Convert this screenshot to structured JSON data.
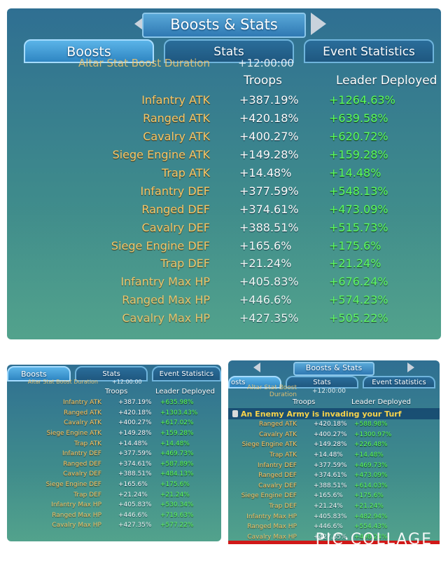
{
  "main": {
    "title": "Boosts & Stats",
    "tabs": [
      "Boosts",
      "Stats",
      "Event Statistics"
    ],
    "partial_row": {
      "label": "Altar Stat Boost Duration",
      "value": "+12:00:00"
    },
    "headers": {
      "troops": "Troops",
      "leader": "Leader Deployed"
    },
    "rows": [
      {
        "name": "Infantry ATK",
        "troops": "+387.19%",
        "leader": "+1264.63%"
      },
      {
        "name": "Ranged ATK",
        "troops": "+420.18%",
        "leader": "+639.58%"
      },
      {
        "name": "Cavalry ATK",
        "troops": "+400.27%",
        "leader": "+620.72%"
      },
      {
        "name": "Siege Engine ATK",
        "troops": "+149.28%",
        "leader": "+159.28%"
      },
      {
        "name": "Trap ATK",
        "troops": "+14.48%",
        "leader": "+14.48%"
      },
      {
        "name": "Infantry DEF",
        "troops": "+377.59%",
        "leader": "+548.13%"
      },
      {
        "name": "Ranged DEF",
        "troops": "+374.61%",
        "leader": "+473.09%"
      },
      {
        "name": "Cavalry DEF",
        "troops": "+388.51%",
        "leader": "+515.73%"
      },
      {
        "name": "Siege Engine DEF",
        "troops": "+165.6%",
        "leader": "+175.6%"
      },
      {
        "name": "Trap DEF",
        "troops": "+21.24%",
        "leader": "+21.24%"
      },
      {
        "name": "Infantry Max HP",
        "troops": "+405.83%",
        "leader": "+676.24%"
      },
      {
        "name": "Ranged Max HP",
        "troops": "+446.6%",
        "leader": "+574.23%"
      },
      {
        "name": "Cavalry Max HP",
        "troops": "+427.35%",
        "leader": "+505.22%"
      }
    ]
  },
  "bottom_left": {
    "tabs": [
      "Boosts",
      "Stats",
      "Event Statistics"
    ],
    "partial_row": {
      "label": "Altar Stat Boost Duration",
      "value": "+12:00:00"
    },
    "headers": {
      "troops": "Troops",
      "leader": "Leader Deployed"
    },
    "rows": [
      {
        "name": "Infantry ATK",
        "troops": "+387.19%",
        "leader": "+635.98%"
      },
      {
        "name": "Ranged ATK",
        "troops": "+420.18%",
        "leader": "+1303.43%"
      },
      {
        "name": "Cavalry ATK",
        "troops": "+400.27%",
        "leader": "+617.02%"
      },
      {
        "name": "Siege Engine ATK",
        "troops": "+149.28%",
        "leader": "+159.28%"
      },
      {
        "name": "Trap ATK",
        "troops": "+14.48%",
        "leader": "+14.48%"
      },
      {
        "name": "Infantry DEF",
        "troops": "+377.59%",
        "leader": "+469.73%"
      },
      {
        "name": "Ranged DEF",
        "troops": "+374.61%",
        "leader": "+587.89%"
      },
      {
        "name": "Cavalry DEF",
        "troops": "+388.51%",
        "leader": "+484.13%"
      },
      {
        "name": "Siege Engine DEF",
        "troops": "+165.6%",
        "leader": "+175.6%"
      },
      {
        "name": "Trap DEF",
        "troops": "+21.24%",
        "leader": "+21.24%"
      },
      {
        "name": "Infantry Max HP",
        "troops": "+405.83%",
        "leader": "+530.34%"
      },
      {
        "name": "Ranged Max HP",
        "troops": "+446.6%",
        "leader": "+719.63%"
      },
      {
        "name": "Cavalry Max HP",
        "troops": "+427.35%",
        "leader": "+577.22%"
      }
    ]
  },
  "bottom_right": {
    "title": "Boosts & Stats",
    "tabs": [
      "osts",
      "Stats",
      "Event Statistics"
    ],
    "partial_row": {
      "label": "Altar Stat Boost Duration",
      "value": "+12:00:00"
    },
    "headers": {
      "troops": "Troops",
      "leader": "Leader Deployed"
    },
    "alert": "An Enemy Army is invading your Turf",
    "rows": [
      {
        "name": "Ranged ATK",
        "troops": "+420.18%",
        "leader": "+588.98%"
      },
      {
        "name": "Cavalry ATK",
        "troops": "+400.27%",
        "leader": "+1300.97%"
      },
      {
        "name": "Siege Engine ATK",
        "troops": "+149.28%",
        "leader": "+226.48%"
      },
      {
        "name": "Trap ATK",
        "troops": "+14.48%",
        "leader": "+14.48%"
      },
      {
        "name": "Infantry DEF",
        "troops": "+377.59%",
        "leader": "+469.73%"
      },
      {
        "name": "Ranged DEF",
        "troops": "+374.61%",
        "leader": "+473.09%"
      },
      {
        "name": "Cavalry DEF",
        "troops": "+388.51%",
        "leader": "+614.03%"
      },
      {
        "name": "Siege Engine DEF",
        "troops": "+165.6%",
        "leader": "+175.6%"
      },
      {
        "name": "Trap DEF",
        "troops": "+21.24%",
        "leader": "+21.24%"
      },
      {
        "name": "Infantry Max HP",
        "troops": "+405.83%",
        "leader": "+482.94%"
      },
      {
        "name": "Ranged Max HP",
        "troops": "+446.6%",
        "leader": "+554.43%"
      },
      {
        "name": "Cavalry Max HP",
        "troops": "+427.35%",
        "leader": "+498.24%"
      }
    ]
  },
  "watermark": "PIC·COLLAGE",
  "colors": {
    "stat_name": "#f7c86a",
    "leader_value": "#5cff5c",
    "troops_value": "#ffffff",
    "alert_text": "#f7d24a"
  }
}
